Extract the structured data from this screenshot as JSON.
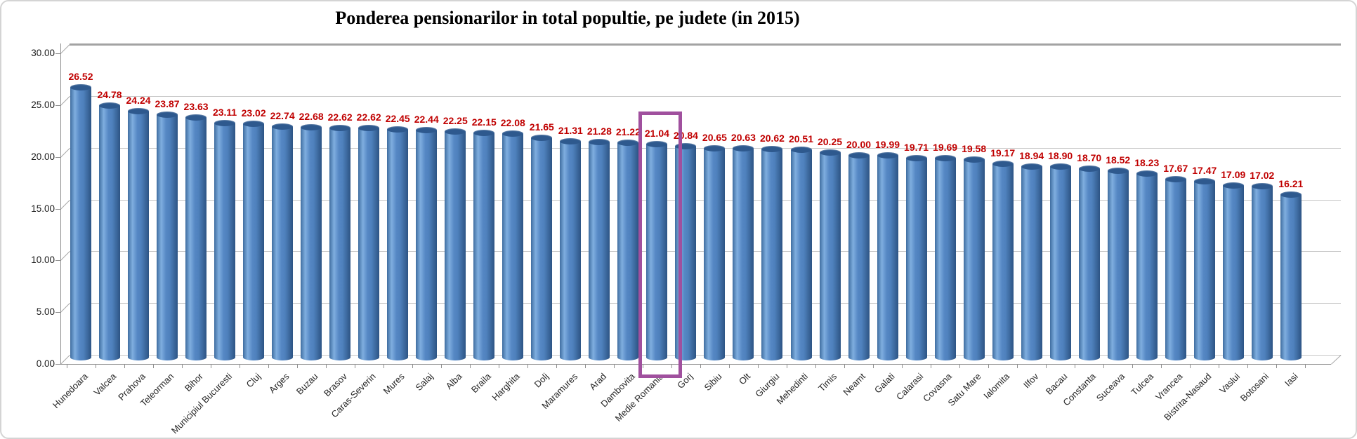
{
  "chart_data": {
    "type": "bar",
    "title": "Ponderea pensionarilor in total popultie, pe judete (in 2015)",
    "categories": [
      "Hunedoara",
      "Valcea",
      "Prahova",
      "Teleorman",
      "Bihor",
      "Municipiul Bucuresti",
      "Cluj",
      "Arges",
      "Buzau",
      "Brasov",
      "Caras-Severin",
      "Mures",
      "Salaj",
      "Alba",
      "Braila",
      "Harghita",
      "Dolj",
      "Maramures",
      "Arad",
      "Dambovita",
      "Medie Romania",
      "Gorj",
      "Sibiu",
      "Olt",
      "Giurgiu",
      "Mehedinti",
      "Timis",
      "Neamt",
      "Galati",
      "Calarasi",
      "Covasna",
      "Satu Mare",
      "Ialomita",
      "Ilfov",
      "Bacau",
      "Constanta",
      "Suceava",
      "Tulcea",
      "Vrancea",
      "Bistrita-Nasaud",
      "Vaslui",
      "Botosani",
      "Iasi"
    ],
    "values": [
      26.52,
      24.78,
      24.24,
      23.87,
      23.63,
      23.11,
      23.02,
      22.74,
      22.68,
      22.62,
      22.62,
      22.45,
      22.44,
      22.25,
      22.15,
      22.08,
      21.65,
      21.31,
      21.28,
      21.22,
      21.04,
      20.84,
      20.65,
      20.63,
      20.62,
      20.51,
      20.25,
      20.0,
      19.99,
      19.71,
      19.69,
      19.58,
      19.17,
      18.94,
      18.9,
      18.7,
      18.52,
      18.23,
      17.67,
      17.47,
      17.09,
      17.02,
      16.21
    ],
    "xlabel": "",
    "ylabel": "",
    "ylim": [
      0,
      30
    ],
    "ytick_labels": [
      "0.00",
      "5.00",
      "10.00",
      "15.00",
      "20.00",
      "25.00",
      "30.00"
    ],
    "grid": true,
    "legend": null,
    "highlighted_category": "Medie Romania",
    "highlighted_value": "21.04",
    "bar_color": "#4F81BD",
    "value_label_color": "#C00000",
    "highlight_box_color": "#A0509E",
    "effect": "3d-cylinder"
  }
}
